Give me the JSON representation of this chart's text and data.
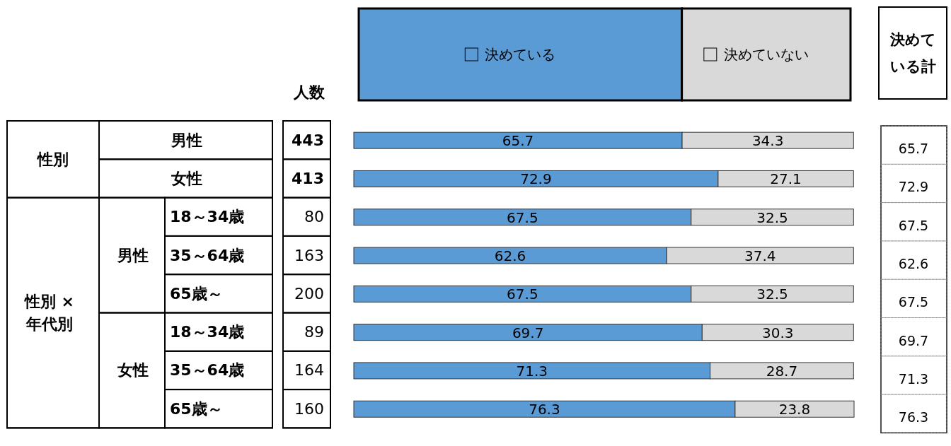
{
  "chart_data": {
    "type": "bar",
    "orientation": "horizontal",
    "stacked": true,
    "data_labels": true,
    "legend": "top",
    "categories": [
      "男性",
      "女性",
      "18～34歳",
      "35～64歳",
      "65歳～",
      "18～34歳",
      "35～64歳",
      "65歳～"
    ],
    "series": [
      {
        "name": "決めている",
        "color": "#5b9bd5",
        "values": [
          65.7,
          72.9,
          67.5,
          62.6,
          67.5,
          69.7,
          71.3,
          76.3
        ]
      },
      {
        "name": "決めていない",
        "color": "#d9d9d9",
        "values": [
          34.3,
          27.1,
          32.5,
          37.4,
          32.5,
          30.3,
          28.7,
          23.8
        ]
      }
    ],
    "annotations": [
      "人数",
      "443",
      "413",
      "80",
      "163",
      "200",
      "89",
      "164",
      "160",
      "決めている計",
      "性別",
      "性別 × 年代別",
      "男性",
      "女性",
      "65.7",
      "72.9",
      "67.5",
      "62.6",
      "67.5",
      "69.7",
      "71.3",
      "76.3"
    ]
  }
}
